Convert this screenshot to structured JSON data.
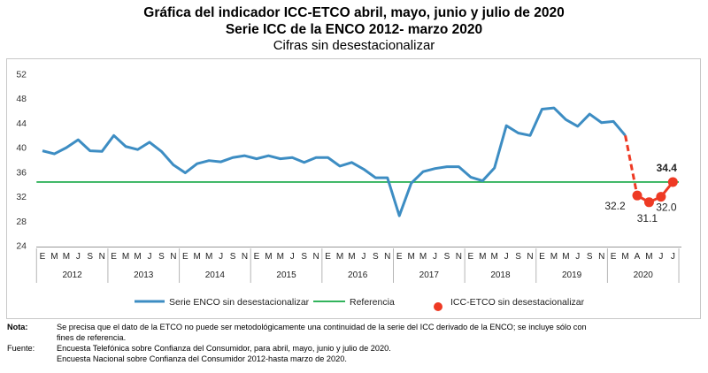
{
  "header": {
    "title_line1": "Gráfica del indicador ICC-ETCO abril, mayo, junio y julio de 2020",
    "title_line2": "Serie ICC de la ENCO 2012- marzo 2020",
    "subtitle": "Cifras sin desestacionalizar"
  },
  "chart_data": {
    "type": "line",
    "ylim": [
      24,
      52
    ],
    "yticks": [
      24,
      28,
      32,
      36,
      40,
      44,
      48,
      52
    ],
    "x_month_labels": [
      "E",
      "M",
      "M",
      "J",
      "S",
      "N"
    ],
    "x_year_labels": [
      "2012",
      "2013",
      "2014",
      "2015",
      "2016",
      "2017",
      "2018",
      "2019",
      "2020"
    ],
    "x_2020_month_labels": [
      "E",
      "M",
      "A",
      "M",
      "J",
      "J"
    ],
    "series": [
      {
        "name": "Serie ENCO sin desestacionalizar",
        "color": "#3d8dc3",
        "values": [
          39.5,
          39.0,
          40.0,
          41.3,
          39.5,
          39.4,
          42.0,
          40.2,
          39.7,
          40.9,
          39.4,
          37.2,
          35.9,
          37.4,
          37.9,
          37.7,
          38.4,
          38.7,
          38.2,
          38.7,
          38.2,
          38.4,
          37.6,
          38.4,
          38.4,
          37.0,
          37.6,
          36.5,
          35.1,
          35.1,
          28.9,
          34.2,
          36.1,
          36.6,
          36.9,
          36.9,
          35.2,
          34.6,
          36.7,
          43.6,
          42.4,
          42.0,
          46.3,
          46.5,
          44.6,
          43.5,
          45.5,
          44.1,
          44.3,
          42.0
        ]
      },
      {
        "name": "Referencia",
        "color": "#32b35c",
        "value": 34.4
      },
      {
        "name": "ICC-ETCO sin desestacionalizar",
        "color": "#ee3a24",
        "values": [
          32.2,
          31.1,
          32.0,
          34.4
        ],
        "months": [
          "A",
          "M",
          "J",
          "J"
        ],
        "labels": [
          "32.2",
          "31.1",
          "32.0",
          "34.4"
        ]
      }
    ]
  },
  "notes": {
    "nota_label": "Nota:",
    "nota_text1": "Se precisa que el dato de la ETCO no puede ser metodológicamente una continuidad de la serie del ICC derivado de la ENCO; se incluye sólo con",
    "nota_text2": "fines de referencia.",
    "fuente_label": "Fuente:",
    "fuente_text1": "Encuesta Telefónica sobre Confianza del Consumidor, para abril, mayo, junio y julio de 2020.",
    "fuente_text2": "Encuesta Nacional sobre Confianza del Consumidor 2012-hasta marzo de 2020."
  }
}
